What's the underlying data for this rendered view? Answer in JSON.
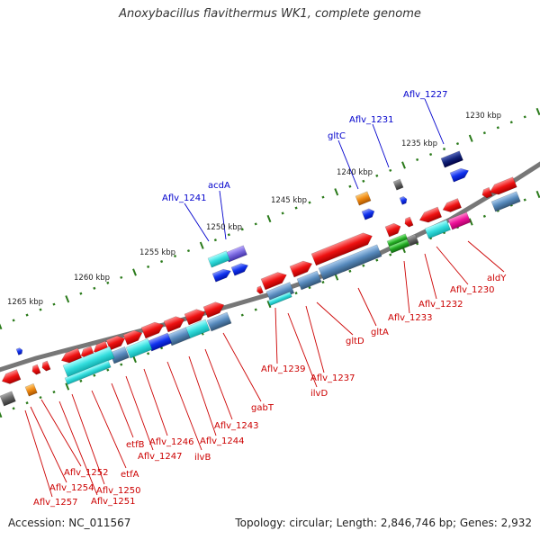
{
  "title": "Anoxybacillus flavithermus WK1, complete genome",
  "footer": {
    "accession": "Accession: NC_011567",
    "summary": "Topology: circular; Length: 2,846,746 bp; Genes: 2,932"
  },
  "ruler": [
    "1230 kbp",
    "1235 kbp",
    "1240 kbp",
    "1245 kbp",
    "1250 kbp",
    "1255 kbp",
    "1260 kbp",
    "1265 kbp"
  ],
  "labels_top": [
    "Aflv_1227",
    "Aflv_1231",
    "gltC",
    "acdA",
    "Aflv_1241"
  ],
  "labels_bottom": [
    "aldY",
    "Aflv_1230",
    "Aflv_1232",
    "Aflv_1233",
    "gltA",
    "gltD",
    "Aflv_1237",
    "ilvD",
    "Aflv_1239",
    "gabT",
    "Aflv_1243",
    "Aflv_1244",
    "ilvB",
    "Aflv_1246",
    "Aflv_1247",
    "etfB",
    "etfA",
    "Aflv_1250",
    "Aflv_1251",
    "Aflv_1252",
    "Aflv_1254",
    "Aflv_1257"
  ],
  "colors": {
    "backbone": "#777777",
    "tick": "#2a7a1a",
    "label_red": "#cc0000",
    "label_blue": "#0000cc",
    "cds_red": "#ee1111",
    "cds_blue": "#1133ee",
    "cyan": "#33dddd",
    "steel": "#5588bb",
    "navy": "#112277",
    "purple": "#7766dd",
    "orange": "#ee8811",
    "green": "#22aa22",
    "magenta": "#ee1199",
    "gray": "#666666"
  }
}
